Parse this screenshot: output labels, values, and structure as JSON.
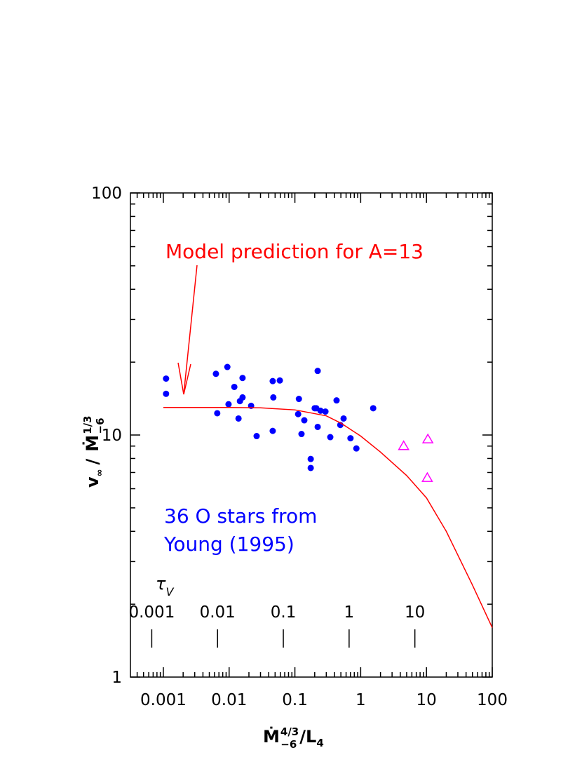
{
  "chart_data": {
    "type": "scatter",
    "xlabel": {
      "dot": "Ṁ",
      "sup": "4/3",
      "sub": "−6",
      "slash": "/",
      "denom": "L",
      "denom_sub": "4"
    },
    "ylabel": {
      "v": "v",
      "v_sub": "∞",
      "slash": "/",
      "dot": "Ṁ",
      "sup": "1/3",
      "sub": "−6"
    },
    "xlog": true,
    "ylog": true,
    "xlim": [
      0.000316,
      100
    ],
    "ylim": [
      1,
      100
    ],
    "xticks": [
      0.001,
      0.01,
      0.1,
      1,
      10,
      100
    ],
    "yticks": [
      1,
      10,
      100
    ],
    "xminorticks": [
      0.0004,
      0.0005,
      0.0006,
      0.0007,
      0.0008,
      0.0009,
      0.002,
      0.003,
      0.004,
      0.005,
      0.006,
      0.007,
      0.008,
      0.009,
      0.02,
      0.03,
      0.04,
      0.05,
      0.06,
      0.07,
      0.08,
      0.09,
      0.2,
      0.3,
      0.4,
      0.5,
      0.6,
      0.7,
      0.8,
      0.9,
      2,
      3,
      4,
      5,
      6,
      7,
      8,
      9,
      20,
      30,
      40,
      50,
      60,
      70,
      80,
      90
    ],
    "yminorticks": [
      2,
      3,
      4,
      5,
      6,
      7,
      8,
      9,
      20,
      30,
      40,
      50,
      60,
      70,
      80,
      90
    ],
    "x2label": {
      "symbol": "τ",
      "sub": "V"
    },
    "x2lim": [
      0.000474,
      150
    ],
    "x2ticks": [
      0.001,
      0.01,
      0.1,
      1,
      10
    ],
    "series": [
      {
        "kind": "points",
        "marker": "circle",
        "color": "#0000ff",
        "x": [
          0.0011,
          0.0011,
          0.0063,
          0.0066,
          0.0094,
          0.0098,
          0.012,
          0.0139,
          0.0146,
          0.016,
          0.016,
          0.0216,
          0.0262,
          0.046,
          0.047,
          0.046,
          0.059,
          0.115,
          0.112,
          0.126,
          0.139,
          0.174,
          0.174,
          0.211,
          0.222,
          0.222,
          0.245,
          0.291,
          0.345,
          0.43,
          0.49,
          0.55,
          0.7,
          0.86,
          1.55,
          0.2
        ],
        "values": [
          17.1,
          14.8,
          17.9,
          12.3,
          19.1,
          13.4,
          15.8,
          11.7,
          13.8,
          17.2,
          14.3,
          13.2,
          9.9,
          16.7,
          14.3,
          10.4,
          16.8,
          14.1,
          12.2,
          10.1,
          11.5,
          7.96,
          7.31,
          12.9,
          18.4,
          10.8,
          12.6,
          12.5,
          9.8,
          13.9,
          11.0,
          11.7,
          9.7,
          8.8,
          12.9,
          12.9
        ]
      },
      {
        "kind": "points",
        "marker": "triangle",
        "color": "#ff00ff",
        "x": [
          4.5,
          10.5,
          10.3
        ],
        "values": [
          9.0,
          9.6,
          6.65
        ]
      },
      {
        "kind": "line",
        "color": "#ff0000",
        "x": [
          0.001,
          0.003,
          0.01,
          0.03,
          0.1,
          0.3,
          0.5,
          1,
          2,
          5,
          10,
          20,
          50,
          100
        ],
        "values": [
          13,
          13,
          13,
          12.95,
          12.7,
          12.0,
          11.2,
          9.9,
          8.5,
          6.8,
          5.5,
          4.0,
          2.4,
          1.6
        ]
      }
    ],
    "annotations": [
      {
        "text": "Model prediction for A=13",
        "color": "#ff0000"
      },
      {
        "lines": [
          "36 O stars from",
          "Young (1995)"
        ],
        "color": "#0000ff"
      }
    ]
  }
}
